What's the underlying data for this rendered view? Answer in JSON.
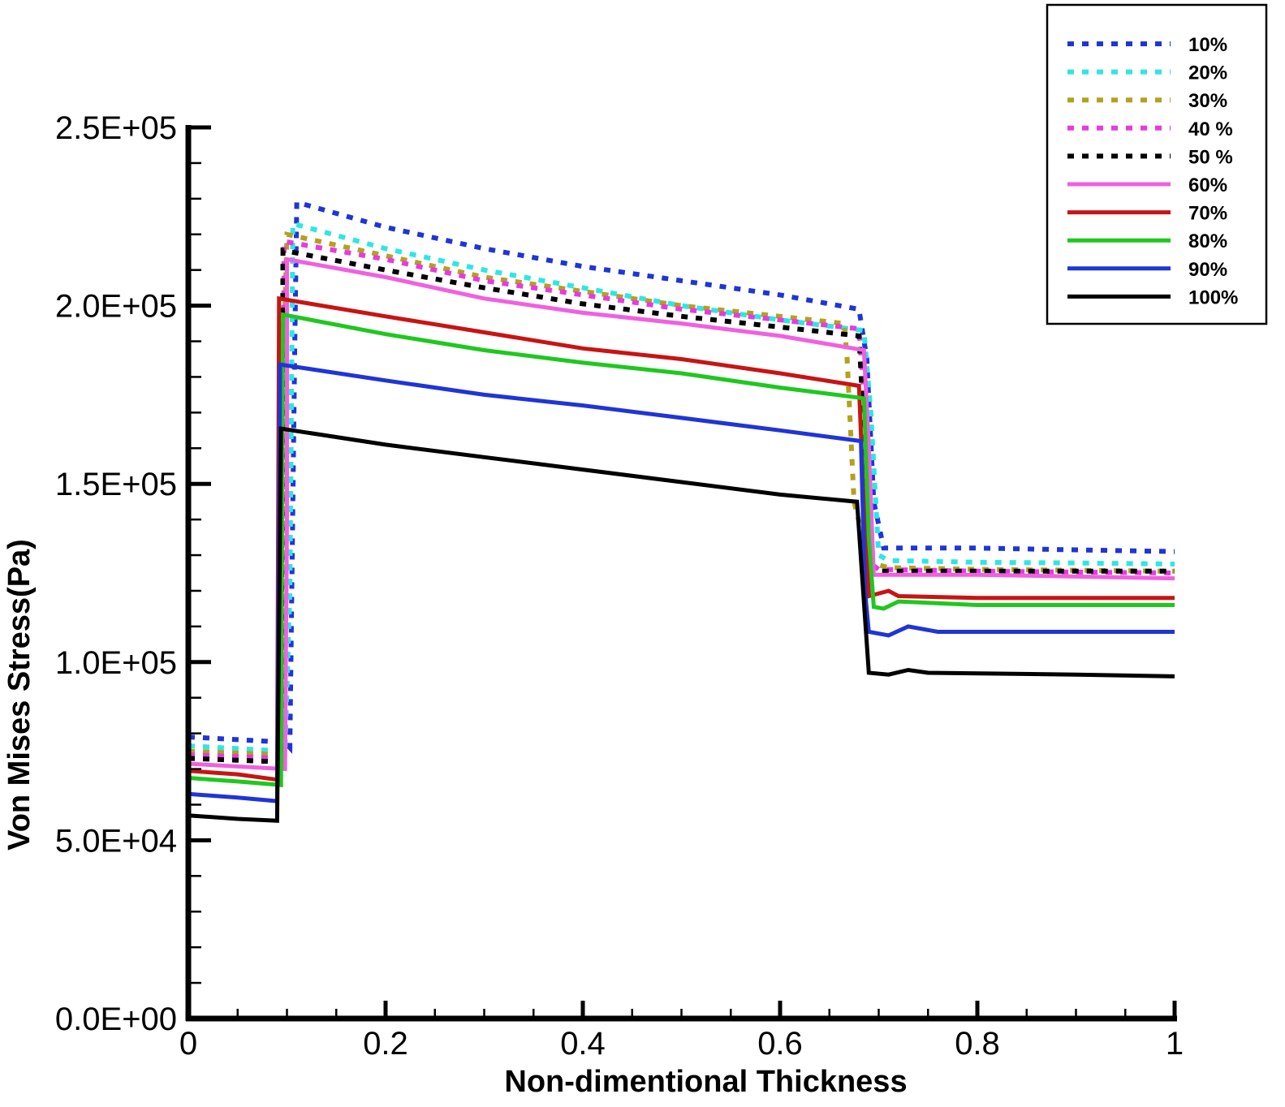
{
  "chart_data": {
    "type": "line",
    "title": "",
    "xlabel": "Non-dimentional Thickness",
    "ylabel": "Von Mises Stress(Pa)",
    "xlim": [
      0,
      1
    ],
    "ylim": [
      0,
      250000
    ],
    "x_ticks": [
      {
        "value": 0,
        "label": "0"
      },
      {
        "value": 0.2,
        "label": "0.2"
      },
      {
        "value": 0.4,
        "label": "0.4"
      },
      {
        "value": 0.6,
        "label": "0.6"
      },
      {
        "value": 0.8,
        "label": "0.8"
      },
      {
        "value": 1,
        "label": "1"
      }
    ],
    "y_ticks": [
      {
        "value": 0,
        "label": "0.0E+00"
      },
      {
        "value": 50000,
        "label": "5.0E+04"
      },
      {
        "value": 100000,
        "label": "1.0E+05"
      },
      {
        "value": 150000,
        "label": "1.5E+05"
      },
      {
        "value": 200000,
        "label": "2.0E+05"
      },
      {
        "value": 250000,
        "label": "2.5E+05"
      }
    ],
    "x_minor_step": 0.05,
    "y_minor_step": 10000,
    "grid": false,
    "legend_position": "top-right",
    "series": [
      {
        "name": "10%",
        "color": "#1f35d6",
        "style": "dotted",
        "points": [
          [
            0,
            79000
          ],
          [
            0.098,
            77500
          ],
          [
            0.103,
            76000
          ],
          [
            0.108,
            190000
          ],
          [
            0.11,
            229000
          ],
          [
            0.2,
            222000
          ],
          [
            0.3,
            216000
          ],
          [
            0.4,
            211000
          ],
          [
            0.5,
            207000
          ],
          [
            0.6,
            203000
          ],
          [
            0.68,
            199000
          ],
          [
            0.688,
            185000
          ],
          [
            0.695,
            145000
          ],
          [
            0.705,
            132000
          ],
          [
            0.8,
            132000
          ],
          [
            0.9,
            131500
          ],
          [
            1,
            131000
          ]
        ]
      },
      {
        "name": "20%",
        "color": "#2ee6e6",
        "style": "dotted",
        "points": [
          [
            0,
            76500
          ],
          [
            0.098,
            75000
          ],
          [
            0.103,
            120000
          ],
          [
            0.106,
            223000
          ],
          [
            0.2,
            216000
          ],
          [
            0.3,
            210000
          ],
          [
            0.4,
            205000
          ],
          [
            0.5,
            200000
          ],
          [
            0.6,
            196000
          ],
          [
            0.685,
            193000
          ],
          [
            0.692,
            170000
          ],
          [
            0.7,
            130000
          ],
          [
            0.71,
            128500
          ],
          [
            0.8,
            128000
          ],
          [
            0.9,
            127800
          ],
          [
            1,
            127500
          ]
        ]
      },
      {
        "name": "30%",
        "color": "#b3a11e",
        "style": "dotted",
        "points": [
          [
            0,
            75000
          ],
          [
            0.095,
            74000
          ],
          [
            0.098,
            200000
          ],
          [
            0.1,
            220000
          ],
          [
            0.2,
            214000
          ],
          [
            0.3,
            208000
          ],
          [
            0.4,
            204000
          ],
          [
            0.5,
            200000
          ],
          [
            0.6,
            197000
          ],
          [
            0.665,
            195000
          ],
          [
            0.668,
            185000
          ],
          [
            0.675,
            145000
          ],
          [
            0.69,
            128000
          ],
          [
            0.71,
            126500
          ],
          [
            0.8,
            126000
          ],
          [
            1,
            125500
          ]
        ]
      },
      {
        "name": "40 %",
        "color": "#e83ae0",
        "style": "dotted",
        "points": [
          [
            0,
            74000
          ],
          [
            0.095,
            73000
          ],
          [
            0.097,
            218000
          ],
          [
            0.2,
            213000
          ],
          [
            0.3,
            207000
          ],
          [
            0.4,
            203000
          ],
          [
            0.5,
            199000
          ],
          [
            0.6,
            196000
          ],
          [
            0.68,
            193500
          ],
          [
            0.685,
            175000
          ],
          [
            0.69,
            128000
          ],
          [
            0.7,
            126000
          ],
          [
            0.8,
            125500
          ],
          [
            1,
            125000
          ]
        ]
      },
      {
        "name": "50 %",
        "color": "#000000",
        "style": "dotted",
        "points": [
          [
            0,
            73000
          ],
          [
            0.094,
            72000
          ],
          [
            0.096,
            215500
          ],
          [
            0.2,
            210000
          ],
          [
            0.3,
            205000
          ],
          [
            0.4,
            200500
          ],
          [
            0.5,
            197000
          ],
          [
            0.6,
            194000
          ],
          [
            0.68,
            191500
          ],
          [
            0.686,
            160000
          ],
          [
            0.69,
            127000
          ],
          [
            0.7,
            125500
          ],
          [
            0.8,
            125500
          ],
          [
            1,
            125500
          ]
        ]
      },
      {
        "name": "60%",
        "color": "#f060e0",
        "style": "solid",
        "points": [
          [
            0,
            71500
          ],
          [
            0.098,
            70000
          ],
          [
            0.1,
            140000
          ],
          [
            0.1,
            213000
          ],
          [
            0.2,
            208000
          ],
          [
            0.3,
            202000
          ],
          [
            0.4,
            198000
          ],
          [
            0.5,
            195000
          ],
          [
            0.6,
            191500
          ],
          [
            0.685,
            187500
          ],
          [
            0.69,
            160000
          ],
          [
            0.695,
            124500
          ],
          [
            0.8,
            124500
          ],
          [
            0.9,
            124000
          ],
          [
            1,
            123500
          ]
        ]
      },
      {
        "name": "70%",
        "color": "#c81414",
        "style": "solid",
        "points": [
          [
            0,
            69500
          ],
          [
            0.05,
            68500
          ],
          [
            0.09,
            67000
          ],
          [
            0.092,
            202000
          ],
          [
            0.2,
            197000
          ],
          [
            0.3,
            192500
          ],
          [
            0.4,
            188000
          ],
          [
            0.5,
            185000
          ],
          [
            0.6,
            181000
          ],
          [
            0.68,
            177500
          ],
          [
            0.684,
            150000
          ],
          [
            0.69,
            118500
          ],
          [
            0.71,
            120000
          ],
          [
            0.72,
            118500
          ],
          [
            0.8,
            118000
          ],
          [
            1,
            118000
          ]
        ]
      },
      {
        "name": "80%",
        "color": "#1ec81e",
        "style": "solid",
        "points": [
          [
            0,
            67500
          ],
          [
            0.05,
            66500
          ],
          [
            0.094,
            65500
          ],
          [
            0.096,
            197500
          ],
          [
            0.2,
            192000
          ],
          [
            0.3,
            187500
          ],
          [
            0.4,
            184000
          ],
          [
            0.5,
            181000
          ],
          [
            0.6,
            177000
          ],
          [
            0.685,
            174000
          ],
          [
            0.69,
            135000
          ],
          [
            0.695,
            115500
          ],
          [
            0.705,
            115000
          ],
          [
            0.72,
            117000
          ],
          [
            0.8,
            116000
          ],
          [
            1,
            116000
          ]
        ]
      },
      {
        "name": "90%",
        "color": "#1f35d6",
        "style": "solid",
        "points": [
          [
            0,
            63000
          ],
          [
            0.05,
            62000
          ],
          [
            0.09,
            61000
          ],
          [
            0.093,
            183500
          ],
          [
            0.2,
            179000
          ],
          [
            0.3,
            175000
          ],
          [
            0.4,
            172000
          ],
          [
            0.5,
            168500
          ],
          [
            0.6,
            165000
          ],
          [
            0.682,
            162000
          ],
          [
            0.686,
            120000
          ],
          [
            0.69,
            108500
          ],
          [
            0.71,
            107500
          ],
          [
            0.73,
            110000
          ],
          [
            0.76,
            108500
          ],
          [
            0.8,
            108500
          ],
          [
            1,
            108500
          ]
        ]
      },
      {
        "name": "100%",
        "color": "#000000",
        "style": "solid",
        "points": [
          [
            0,
            57000
          ],
          [
            0.05,
            56000
          ],
          [
            0.09,
            55500
          ],
          [
            0.094,
            165500
          ],
          [
            0.2,
            161000
          ],
          [
            0.3,
            157500
          ],
          [
            0.4,
            154000
          ],
          [
            0.5,
            150500
          ],
          [
            0.6,
            147000
          ],
          [
            0.678,
            145000
          ],
          [
            0.683,
            125000
          ],
          [
            0.69,
            97000
          ],
          [
            0.71,
            96500
          ],
          [
            0.73,
            97800
          ],
          [
            0.75,
            97000
          ],
          [
            0.9,
            96500
          ],
          [
            1,
            96000
          ]
        ]
      }
    ]
  }
}
